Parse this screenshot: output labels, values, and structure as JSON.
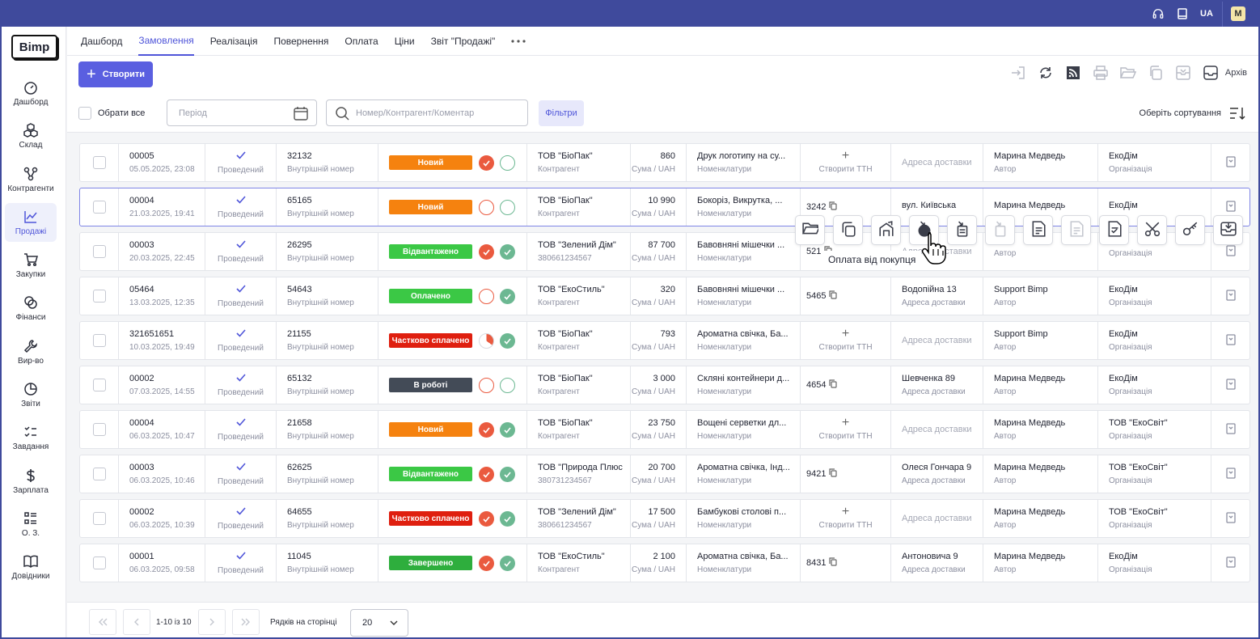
{
  "topbar": {
    "lang": "UA",
    "user_initial": "M",
    "icons": [
      "headset-icon",
      "tablet-icon"
    ]
  },
  "sidebar": {
    "logo": "Bimp",
    "items": [
      {
        "label": "Дашборд",
        "icon": "gauge-icon"
      },
      {
        "label": "Склад",
        "icon": "boxes-icon"
      },
      {
        "label": "Контрагенти",
        "icon": "network-icon"
      },
      {
        "label": "Продажі",
        "icon": "chart-line-icon",
        "active": true
      },
      {
        "label": "Закупки",
        "icon": "cart-icon"
      },
      {
        "label": "Фінанси",
        "icon": "coins-icon"
      },
      {
        "label": "Вир-во",
        "icon": "wrench-icon"
      },
      {
        "label": "Звіти",
        "icon": "pie-chart-icon"
      },
      {
        "label": "Завдання",
        "icon": "checklist-icon"
      },
      {
        "label": "Зарплата",
        "icon": "dollar-icon"
      },
      {
        "label": "О. З.",
        "icon": "grid-list-icon"
      },
      {
        "label": "Довідники",
        "icon": "book-icon"
      }
    ]
  },
  "tabs": [
    "Дашборд",
    "Замовлення",
    "Реалізація",
    "Повернення",
    "Оплата",
    "Ціни",
    "Звіт \"Продажі\""
  ],
  "active_tab": "Замовлення",
  "toolbar": {
    "create_label": "Створити",
    "archive_label": "Архів"
  },
  "filters": {
    "select_all": "Обрати все",
    "period_placeholder": "Період",
    "search_placeholder": "Номер/Контрагент/Коментар",
    "filters_label": "Фільтри",
    "sort_label": "Оберіть сортування"
  },
  "accent": "#5a5fe0",
  "status_colors": {
    "Новий": "#f5820f",
    "Відвантажено": "#3bc845",
    "Оплачено": "#3bc845",
    "Частково сплачено": "#df1f0f",
    "В роботі": "#434b57",
    "Завершено": "#2eae3d"
  },
  "orders": [
    {
      "num": "00005",
      "date": "05.05.2025, 23:08",
      "state": "Проведений",
      "internal": "32132",
      "internal_label": "Внутрішній номер",
      "status": "Новий",
      "pay": "red",
      "ship": "greeno",
      "client": "ТОВ \"БіоПак\"",
      "client_sub": "Контрагент",
      "sum": "860",
      "sum_label": "Сума / UAH",
      "items": "Друк логотипу на су...",
      "items_label": "Номенклатури",
      "ttn": "",
      "ttn_label": "Створити ТТН",
      "address": "",
      "address_label": "Адреса доставки",
      "author": "Марина Медведь",
      "author_label": "Автор",
      "org": "ЕкоДім",
      "org_label": "Організація"
    },
    {
      "num": "00004",
      "date": "21.03.2025, 19:41",
      "state": "Проведений",
      "internal": "65165",
      "internal_label": "Внутрішній номер",
      "status": "Новий",
      "pay": "redo",
      "ship": "greeno",
      "client": "ТОВ \"БіоПак\"",
      "client_sub": "Контрагент",
      "sum": "10 990",
      "sum_label": "Сума / UAH",
      "items": "Бокоріз, Викрутка, ...",
      "items_label": "Номенклатури",
      "ttn": "3242",
      "ttn_label": "",
      "address": "вул. Київська",
      "address_label": "",
      "author": "Марина Медведь",
      "author_label": "",
      "org": "ЕкоДім",
      "org_label": ""
    },
    {
      "num": "00003",
      "date": "20.03.2025, 22:45",
      "state": "Проведений",
      "internal": "26295",
      "internal_label": "Внутрішній номер",
      "status": "Відвантажено",
      "pay": "red",
      "ship": "green",
      "client": "ТОВ \"Зелений Дім\"",
      "client_sub": "380661234567",
      "sum": "87 700",
      "sum_label": "Сума / UAH",
      "items": "Бавовняні мішечки ...",
      "items_label": "Номенклатури",
      "ttn": "521",
      "ttn_label": "",
      "address": "",
      "address_label": "Адреса доставки",
      "author": "",
      "author_label": "Автор",
      "org": "",
      "org_label": "Організація"
    },
    {
      "num": "05464",
      "date": "13.03.2025, 12:35",
      "state": "Проведений",
      "internal": "54643",
      "internal_label": "Внутрішній номер",
      "status": "Оплачено",
      "pay": "redo",
      "ship": "green",
      "client": "ТОВ \"ЕкоСтиль\"",
      "client_sub": "Контрагент",
      "sum": "320",
      "sum_label": "Сума / UAH",
      "items": "Бавовняні мішечки ...",
      "items_label": "Номенклатури",
      "ttn": "5465",
      "ttn_label": "",
      "address": "Водопійна 13",
      "address_label": "Адреса доставки",
      "author": "Support Bimp",
      "author_label": "Автор",
      "org": "ЕкоДім",
      "org_label": "Організація"
    },
    {
      "num": "321651651",
      "date": "10.03.2025, 19:49",
      "state": "Проведений",
      "internal": "21155",
      "internal_label": "Внутрішній номер",
      "status": "Частково сплачено",
      "pay": "half",
      "ship": "green",
      "client": "ТОВ \"БіоПак\"",
      "client_sub": "Контрагент",
      "sum": "793",
      "sum_label": "Сума / UAH",
      "items": "Ароматна свічка, Ба...",
      "items_label": "Номенклатури",
      "ttn": "",
      "ttn_label": "Створити ТТН",
      "address": "",
      "address_label": "Адреса доставки",
      "author": "Support Bimp",
      "author_label": "Автор",
      "org": "ЕкоДім",
      "org_label": "Організація"
    },
    {
      "num": "00002",
      "date": "07.03.2025, 14:55",
      "state": "Проведений",
      "internal": "65132",
      "internal_label": "Внутрішній номер",
      "status": "В роботі",
      "pay": "redo",
      "ship": "greeno",
      "client": "ТОВ \"БіоПак\"",
      "client_sub": "Контрагент",
      "sum": "3 000",
      "sum_label": "Сума / UAH",
      "items": "Скляні контейнери д...",
      "items_label": "Номенклатури",
      "ttn": "4654",
      "ttn_label": "",
      "address": "Шевченка 89",
      "address_label": "Адреса доставки",
      "author": "Марина Медведь",
      "author_label": "Автор",
      "org": "ЕкоДім",
      "org_label": "Організація"
    },
    {
      "num": "00004",
      "date": "06.03.2025, 10:47",
      "state": "Проведений",
      "internal": "21658",
      "internal_label": "Внутрішній номер",
      "status": "Новий",
      "pay": "red",
      "ship": "green",
      "client": "ТОВ \"БіоПак\"",
      "client_sub": "Контрагент",
      "sum": "23 750",
      "sum_label": "Сума / UAH",
      "items": "Вощені серветки дл...",
      "items_label": "Номенклатури",
      "ttn": "",
      "ttn_label": "Створити ТТН",
      "address": "",
      "address_label": "Адреса доставки",
      "author": "Марина Медведь",
      "author_label": "Автор",
      "org": "ТОВ \"ЕкоСвіт\"",
      "org_label": "Організація"
    },
    {
      "num": "00003",
      "date": "06.03.2025, 10:46",
      "state": "Проведений",
      "internal": "62625",
      "internal_label": "Внутрішній номер",
      "status": "Відвантажено",
      "pay": "red",
      "ship": "green",
      "client": "ТОВ \"Природа Плюс",
      "client_sub": "380731234567",
      "sum": "20 700",
      "sum_label": "Сума / UAH",
      "items": "Ароматна свічка, Інд...",
      "items_label": "Номенклатури",
      "ttn": "9421",
      "ttn_label": "",
      "address": "Олеся Гончара 9",
      "address_label": "Адреса доставки",
      "author": "Марина Медведь",
      "author_label": "Автор",
      "org": "ТОВ \"ЕкоСвіт\"",
      "org_label": "Організація"
    },
    {
      "num": "00002",
      "date": "06.03.2025, 10:39",
      "state": "Проведений",
      "internal": "64655",
      "internal_label": "Внутрішній номер",
      "status": "Частково сплачено",
      "pay": "red",
      "ship": "green",
      "client": "ТОВ \"Зелений Дім\"",
      "client_sub": "380661234567",
      "sum": "17 500",
      "sum_label": "Сума / UAH",
      "items": "Бамбукові столові п...",
      "items_label": "Номенклатури",
      "ttn": "",
      "ttn_label": "Створити ТТН",
      "address": "",
      "address_label": "Адреса доставки",
      "author": "Марина Медведь",
      "author_label": "Автор",
      "org": "ТОВ \"ЕкоСвіт\"",
      "org_label": "Організація"
    },
    {
      "num": "00001",
      "date": "06.03.2025, 09:58",
      "state": "Проведений",
      "internal": "11045",
      "internal_label": "Внутрішній номер",
      "status": "Завершено",
      "pay": "red",
      "ship": "green",
      "client": "ТОВ \"ЕкоСтиль\"",
      "client_sub": "Контрагент",
      "sum": "2 100",
      "sum_label": "Сума / UAH",
      "items": "Ароматна свічка, Ба...",
      "items_label": "Номенклатури",
      "ttn": "8431",
      "ttn_label": "",
      "address": "Антоновича 9",
      "address_label": "Адреса доставки",
      "author": "Марина Медведь",
      "author_label": "Автор",
      "org": "ЕкоДім",
      "org_label": "Організація"
    }
  ],
  "row_actions": {
    "tooltip": "Оплата від покупця",
    "icons": [
      "folder-open-icon",
      "copy-icon",
      "warehouse-out-icon",
      "payment-in-icon",
      "invoice-in-icon",
      "doc-disabled-icon",
      "document-icon",
      "document-disabled-icon",
      "document-check-icon",
      "scissors-icon",
      "key-icon",
      "archive-icon"
    ]
  },
  "pagination": {
    "range": "1-10 із 10",
    "rows_label": "Рядків на сторінці",
    "rows_value": "20"
  }
}
